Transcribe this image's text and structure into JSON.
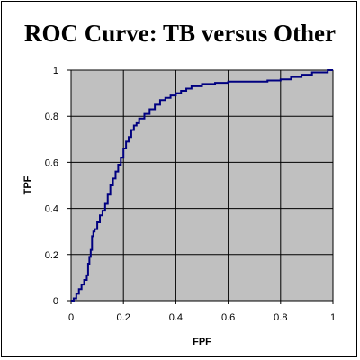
{
  "chart_data": {
    "type": "line",
    "title": "ROC Curve: TB versus Other",
    "xlabel": "FPF",
    "ylabel": "TPF",
    "xlim": [
      0,
      1
    ],
    "ylim": [
      0,
      1
    ],
    "xticks": [
      "0",
      "0.2",
      "0.4",
      "0.6",
      "0.8",
      "1"
    ],
    "yticks": [
      "0",
      "0.2",
      "0.4",
      "0.6",
      "0.8",
      "1"
    ],
    "grid": true,
    "legend": "none",
    "colors": {
      "plot_area": "#c0c0c0",
      "line": "#000080",
      "grid": "#000000"
    },
    "series": [
      {
        "x": [
          0.0,
          0.01,
          0.02,
          0.03,
          0.04,
          0.05,
          0.06,
          0.065,
          0.07,
          0.075,
          0.08,
          0.085,
          0.09,
          0.1,
          0.11,
          0.12,
          0.13,
          0.14,
          0.15,
          0.16,
          0.17,
          0.18,
          0.19,
          0.2,
          0.21,
          0.22,
          0.23,
          0.24,
          0.25,
          0.26,
          0.28,
          0.3,
          0.32,
          0.34,
          0.36,
          0.38,
          0.4,
          0.42,
          0.44,
          0.46,
          0.5,
          0.55,
          0.6,
          0.65,
          0.7,
          0.75,
          0.8,
          0.84,
          0.88,
          0.92,
          0.95,
          0.98,
          1.0
        ],
        "y": [
          0.0,
          0.01,
          0.03,
          0.05,
          0.07,
          0.09,
          0.11,
          0.16,
          0.19,
          0.22,
          0.28,
          0.3,
          0.31,
          0.34,
          0.37,
          0.39,
          0.42,
          0.46,
          0.5,
          0.53,
          0.56,
          0.59,
          0.62,
          0.66,
          0.69,
          0.71,
          0.74,
          0.76,
          0.77,
          0.79,
          0.81,
          0.83,
          0.85,
          0.87,
          0.88,
          0.89,
          0.9,
          0.91,
          0.92,
          0.93,
          0.94,
          0.945,
          0.95,
          0.95,
          0.95,
          0.955,
          0.96,
          0.97,
          0.98,
          0.99,
          0.99,
          1.0,
          1.0
        ]
      }
    ]
  }
}
